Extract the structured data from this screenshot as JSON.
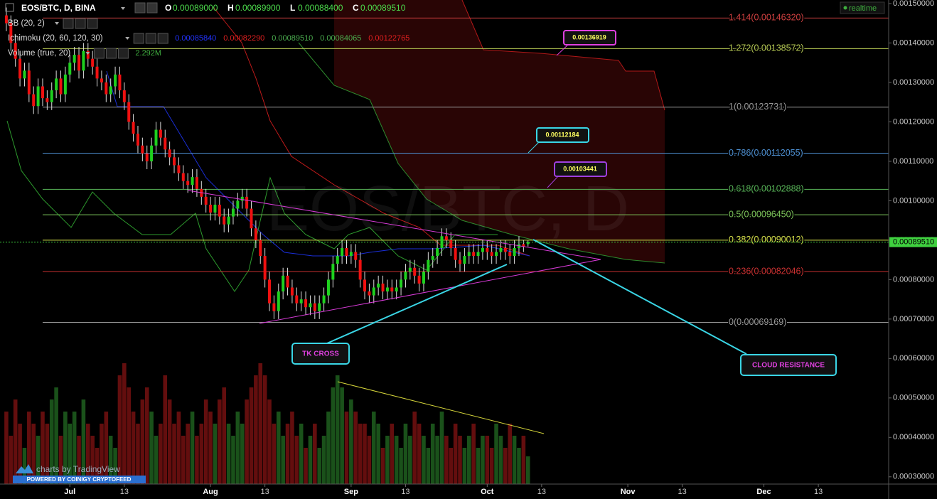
{
  "chart_data": {
    "type": "candlestick",
    "title": "EOS/BTC, D, BINA",
    "ohlc_header": [
      {
        "key": "O",
        "value": "0.00089000"
      },
      {
        "key": "H",
        "value": "0.00089900"
      },
      {
        "key": "L",
        "value": "0.00088400"
      },
      {
        "key": "C",
        "value": "0.00089510"
      }
    ],
    "indicators": [
      {
        "name": "BB (20, 2)",
        "values": []
      },
      {
        "name": "Ichimoku (20, 60, 120, 30)",
        "values": [
          {
            "text": "0.00085840",
            "color": "#2233ff"
          },
          {
            "text": "0.00082290",
            "color": "#e02020"
          },
          {
            "text": "0.00089510",
            "color": "#4caf50"
          },
          {
            "text": "0.00084065",
            "color": "#4caf50"
          },
          {
            "text": "0.00122765",
            "color": "#e02020"
          }
        ]
      },
      {
        "name": "Volume (true, 20)",
        "values": [
          {
            "text": "2.292M",
            "color": "#3fae3f"
          }
        ]
      }
    ],
    "realtime": "realtime",
    "watermark": "EOS/BTC, D",
    "branding": [
      "charts by TradingView",
      "POWERED BY COINIGY CRYPTOFEED"
    ],
    "up_color": "#1ed11e",
    "down_color": "#f01010",
    "volume_up_color": "#1d5a1d",
    "volume_down_color": "#6e1010",
    "xlim": [
      -1.4,
      194.5
    ],
    "xticks": [
      {
        "value": 14,
        "label": "Jul"
      },
      {
        "value": 26,
        "label": "13"
      },
      {
        "value": 45,
        "label": "Aug"
      },
      {
        "value": 57,
        "label": "13"
      },
      {
        "value": 76,
        "label": "Sep"
      },
      {
        "value": 88,
        "label": "13"
      },
      {
        "value": 106,
        "label": "Oct"
      },
      {
        "value": 118,
        "label": "13"
      },
      {
        "value": 137,
        "label": "Nov"
      },
      {
        "value": 149,
        "label": "13"
      },
      {
        "value": 167,
        "label": "Dec"
      },
      {
        "value": 179,
        "label": "13"
      }
    ],
    "ylim": [
      0.0002816,
      0.001509
    ],
    "yticks": [
      {
        "value": 0.0003,
        "label": "0.00030000"
      },
      {
        "value": 0.0004,
        "label": "0.00040000"
      },
      {
        "value": 0.0005,
        "label": "0.00050000"
      },
      {
        "value": 0.0006,
        "label": "0.00060000"
      },
      {
        "value": 0.0007,
        "label": "0.00070000"
      },
      {
        "value": 0.0008,
        "label": "0.00080000"
      },
      {
        "value": 0.0009,
        "label": "0.00090000"
      },
      {
        "value": 0.001,
        "label": "0.00100000"
      },
      {
        "value": 0.0011,
        "label": "0.00110000"
      },
      {
        "value": 0.0012,
        "label": "0.00120000"
      },
      {
        "value": 0.0013,
        "label": "0.00130000"
      },
      {
        "value": 0.0014,
        "label": "0.00140000"
      },
      {
        "value": 0.0015,
        "label": "0.00150000"
      }
    ],
    "last_price": {
      "value": 0.0008951,
      "label": "0.00089510",
      "color": "#3fd13f"
    },
    "fib_levels": [
      {
        "label": "1.414(0.00146320)",
        "value": 0.0014632,
        "color": "#d04040"
      },
      {
        "label": "1.272(0.00138572)",
        "value": 0.00138572,
        "color": "#b9cc55"
      },
      {
        "label": "1(0.00123731)",
        "value": 0.00123731,
        "color": "#999999"
      },
      {
        "label": "0.786(0.00112055)",
        "value": 0.00112055,
        "color": "#4d8fd1"
      },
      {
        "label": "0.618(0.00102888)",
        "value": 0.00102888,
        "color": "#58b558"
      },
      {
        "label": "0.5(0.00096450)",
        "value": 0.0009645,
        "color": "#7cc45a"
      },
      {
        "label": "0.382(0.00090012)",
        "value": 0.00090012,
        "color": "#d6e04a"
      },
      {
        "label": "0.236(0.00082046)",
        "value": 0.00082046,
        "color": "#c83030"
      },
      {
        "label": "0(0.00069169)",
        "value": 0.00069169,
        "color": "#999999"
      }
    ],
    "callouts": [
      "0.00136919",
      "0.00112184",
      "0.00103441",
      "TK CROSS",
      "CLOUD RESISTANCE"
    ],
    "candles": [
      [
        0.00147,
        0.00149,
        0.00143,
        0.00145
      ],
      [
        0.00145,
        0.00147,
        0.00138,
        0.0014
      ],
      [
        0.0014,
        0.00142,
        0.00134,
        0.00136
      ],
      [
        0.00136,
        0.00138,
        0.00129,
        0.00131
      ],
      [
        0.00131,
        0.00135,
        0.00129,
        0.00133
      ],
      [
        0.00133,
        0.00135,
        0.00125,
        0.00127
      ],
      [
        0.00127,
        0.00129,
        0.00122,
        0.00124
      ],
      [
        0.00124,
        0.00131,
        0.00122,
        0.00129
      ],
      [
        0.00129,
        0.00131,
        0.00124,
        0.00126
      ],
      [
        0.00126,
        0.00128,
        0.00123,
        0.00125
      ],
      [
        0.00125,
        0.0013,
        0.00123,
        0.00128
      ],
      [
        0.00128,
        0.00133,
        0.00126,
        0.00131
      ],
      [
        0.00131,
        0.00133,
        0.00125,
        0.00127
      ],
      [
        0.00127,
        0.00134,
        0.00125,
        0.00132
      ],
      [
        0.00132,
        0.00137,
        0.0013,
        0.00135
      ],
      [
        0.00135,
        0.00139,
        0.00133,
        0.00137
      ],
      [
        0.00137,
        0.00139,
        0.00131,
        0.00133
      ],
      [
        0.00133,
        0.0014,
        0.00131,
        0.00138
      ],
      [
        0.00138,
        0.0014,
        0.00134,
        0.00136
      ],
      [
        0.00136,
        0.00138,
        0.00132,
        0.00134
      ],
      [
        0.00134,
        0.00136,
        0.00129,
        0.00131
      ],
      [
        0.00131,
        0.00133,
        0.00128,
        0.0013
      ],
      [
        0.0013,
        0.00132,
        0.00125,
        0.00127
      ],
      [
        0.00127,
        0.00131,
        0.00125,
        0.00129
      ],
      [
        0.00129,
        0.00134,
        0.00127,
        0.00132
      ],
      [
        0.00132,
        0.00134,
        0.00126,
        0.00128
      ],
      [
        0.00128,
        0.0013,
        0.00123,
        0.00125
      ],
      [
        0.00125,
        0.00127,
        0.00118,
        0.0012
      ],
      [
        0.0012,
        0.00122,
        0.00115,
        0.00117
      ],
      [
        0.00117,
        0.00119,
        0.00112,
        0.00114
      ],
      [
        0.00114,
        0.00116,
        0.0011,
        0.00112
      ],
      [
        0.00112,
        0.00114,
        0.00108,
        0.0011
      ],
      [
        0.0011,
        0.00116,
        0.00108,
        0.00114
      ],
      [
        0.00114,
        0.0012,
        0.00112,
        0.00118
      ],
      [
        0.00118,
        0.0012,
        0.00114,
        0.00116
      ],
      [
        0.00116,
        0.00118,
        0.00111,
        0.00113
      ],
      [
        0.00113,
        0.00115,
        0.00109,
        0.00111
      ],
      [
        0.00111,
        0.00113,
        0.00107,
        0.00109
      ],
      [
        0.00109,
        0.00111,
        0.00105,
        0.00107
      ],
      [
        0.00107,
        0.00109,
        0.00103,
        0.00105
      ],
      [
        0.00105,
        0.00107,
        0.00102,
        0.00104
      ],
      [
        0.00104,
        0.00108,
        0.00102,
        0.00106
      ],
      [
        0.00106,
        0.00108,
        0.00101,
        0.00103
      ],
      [
        0.00103,
        0.00105,
        0.00099,
        0.00101
      ],
      [
        0.00101,
        0.00103,
        0.00097,
        0.00099
      ],
      [
        0.00099,
        0.00101,
        0.00095,
        0.00097
      ],
      [
        0.00097,
        0.00101,
        0.00095,
        0.00099
      ],
      [
        0.00099,
        0.00101,
        0.00094,
        0.00096
      ],
      [
        0.00096,
        0.00098,
        0.00092,
        0.00094
      ],
      [
        0.00094,
        0.00098,
        0.00092,
        0.00096
      ],
      [
        0.00096,
        0.001,
        0.00094,
        0.00098
      ],
      [
        0.00098,
        0.00102,
        0.00096,
        0.001
      ],
      [
        0.001,
        0.00103,
        0.00098,
        0.00101
      ],
      [
        0.00101,
        0.00103,
        0.00096,
        0.00098
      ],
      [
        0.00098,
        0.001,
        0.00091,
        0.00093
      ],
      [
        0.00093,
        0.00095,
        0.00088,
        0.0009
      ],
      [
        0.0009,
        0.00092,
        0.00084,
        0.00086
      ],
      [
        0.00086,
        0.00088,
        0.00078,
        0.0008
      ],
      [
        0.0008,
        0.00082,
        0.00072,
        0.00074
      ],
      [
        0.00074,
        0.00076,
        0.0007,
        0.00072
      ],
      [
        0.00072,
        0.00079,
        0.0007,
        0.00077
      ],
      [
        0.00077,
        0.00083,
        0.00075,
        0.00081
      ],
      [
        0.00081,
        0.00083,
        0.00076,
        0.00078
      ],
      [
        0.00078,
        0.0008,
        0.00074,
        0.00076
      ],
      [
        0.00076,
        0.00078,
        0.00072,
        0.00074
      ],
      [
        0.00074,
        0.00077,
        0.00072,
        0.00075
      ],
      [
        0.00075,
        0.00077,
        0.00071,
        0.00073
      ],
      [
        0.00073,
        0.00076,
        0.00071,
        0.00074
      ],
      [
        0.00074,
        0.00076,
        0.0007,
        0.00072
      ],
      [
        0.00072,
        0.00076,
        0.0007,
        0.00074
      ],
      [
        0.00074,
        0.00078,
        0.00072,
        0.00076
      ],
      [
        0.00076,
        0.00082,
        0.00074,
        0.0008
      ],
      [
        0.0008,
        0.00086,
        0.00078,
        0.00084
      ],
      [
        0.00084,
        0.00088,
        0.00082,
        0.00086
      ],
      [
        0.00086,
        0.0009,
        0.00084,
        0.00088
      ],
      [
        0.00088,
        0.0009,
        0.00084,
        0.00086
      ],
      [
        0.00086,
        0.00089,
        0.00084,
        0.00087
      ],
      [
        0.00087,
        0.00089,
        0.00083,
        0.00085
      ],
      [
        0.00085,
        0.00087,
        0.00078,
        0.0008
      ],
      [
        0.0008,
        0.00082,
        0.00075,
        0.00077
      ],
      [
        0.00077,
        0.00079,
        0.00074,
        0.00076
      ],
      [
        0.00076,
        0.0008,
        0.00074,
        0.00078
      ],
      [
        0.00078,
        0.00081,
        0.00076,
        0.00079
      ],
      [
        0.00079,
        0.00081,
        0.00075,
        0.00077
      ],
      [
        0.00077,
        0.0008,
        0.00075,
        0.00078
      ],
      [
        0.00078,
        0.0008,
        0.00075,
        0.00077
      ],
      [
        0.00077,
        0.0008,
        0.00075,
        0.00078
      ],
      [
        0.00078,
        0.00082,
        0.00076,
        0.0008
      ],
      [
        0.0008,
        0.00084,
        0.00078,
        0.00082
      ],
      [
        0.00082,
        0.00085,
        0.0008,
        0.00083
      ],
      [
        0.00083,
        0.00085,
        0.00079,
        0.00081
      ],
      [
        0.00081,
        0.00083,
        0.00077,
        0.00079
      ],
      [
        0.00079,
        0.00084,
        0.00077,
        0.00082
      ],
      [
        0.00082,
        0.00087,
        0.0008,
        0.00085
      ],
      [
        0.00085,
        0.00088,
        0.00083,
        0.00086
      ],
      [
        0.00086,
        0.0009,
        0.00084,
        0.00088
      ],
      [
        0.00088,
        0.00093,
        0.00086,
        0.00091
      ],
      [
        0.00091,
        0.00093,
        0.00088,
        0.0009
      ],
      [
        0.0009,
        0.00092,
        0.00086,
        0.00088
      ],
      [
        0.00088,
        0.0009,
        0.00083,
        0.00085
      ],
      [
        0.00085,
        0.00087,
        0.00082,
        0.00084
      ],
      [
        0.00084,
        0.00088,
        0.00082,
        0.00086
      ],
      [
        0.00086,
        0.00089,
        0.00084,
        0.00087
      ],
      [
        0.00087,
        0.00089,
        0.00084,
        0.00086
      ],
      [
        0.00086,
        0.00089,
        0.00084,
        0.00087
      ],
      [
        0.00087,
        0.0009,
        0.00085,
        0.00088
      ],
      [
        0.00088,
        0.0009,
        0.00085,
        0.00087
      ],
      [
        0.00087,
        0.00089,
        0.00084,
        0.00086
      ],
      [
        0.00086,
        0.00089,
        0.00084,
        0.00087
      ],
      [
        0.00087,
        0.0009,
        0.00085,
        0.00088
      ],
      [
        0.00088,
        0.0009,
        0.00085,
        0.00087
      ],
      [
        0.00087,
        0.00089,
        0.00084,
        0.00086
      ],
      [
        0.00086,
        0.0009,
        0.00084,
        0.00088
      ],
      [
        0.00088,
        0.00091,
        0.00086,
        0.00089
      ],
      [
        0.00089,
        0.0009,
        0.00087,
        0.000884
      ],
      [
        0.00089,
        0.000899,
        0.000884,
        0.0008951
      ]
    ],
    "volume": [
      6,
      4,
      7,
      5,
      3,
      6,
      5,
      4,
      6,
      5,
      7,
      8,
      4,
      6,
      5,
      6,
      4,
      7,
      5,
      4,
      3,
      5,
      6,
      4,
      3,
      9,
      10,
      8,
      6,
      5,
      7,
      8,
      6,
      4,
      5,
      9,
      7,
      5,
      6,
      4,
      5,
      6,
      4,
      5,
      7,
      6,
      5,
      7,
      8,
      5,
      4,
      6,
      5,
      7,
      8,
      9,
      10,
      9,
      7,
      5,
      6,
      4,
      5,
      6,
      4,
      5,
      3,
      4,
      5,
      3,
      4,
      6,
      8,
      9,
      8,
      6,
      7,
      6,
      5,
      5,
      4,
      6,
      5,
      3,
      4,
      5,
      4,
      3,
      5,
      4,
      6,
      5,
      4,
      3,
      5,
      4,
      6,
      4,
      3,
      5,
      4,
      3,
      4,
      5,
      3,
      4,
      4,
      3,
      5,
      4,
      3,
      5,
      4,
      3,
      4,
      2.292
    ]
  }
}
